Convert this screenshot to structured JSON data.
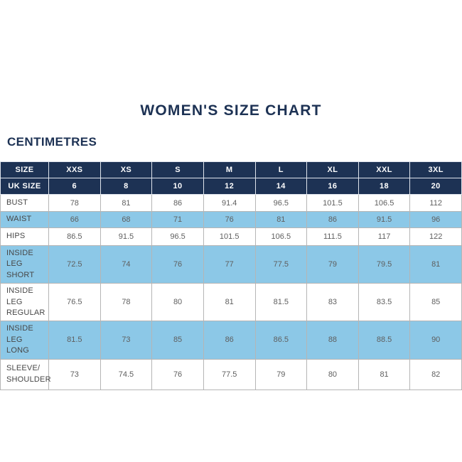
{
  "page": {
    "title": "WOMEN'S SIZE CHART",
    "subtitle": "CENTIMETRES"
  },
  "colors": {
    "navy": "#1d3254",
    "light_blue": "#8cc8e7",
    "border_gray": "#b5b5b5",
    "data_text": "#5f5f5f",
    "label_text": "#474747"
  },
  "table": {
    "header": [
      "SIZE",
      "XXS",
      "XS",
      "S",
      "M",
      "L",
      "XL",
      "XXL",
      "3XL"
    ],
    "uk_row": {
      "label": "UK SIZE",
      "values": [
        "6",
        "8",
        "10",
        "12",
        "14",
        "16",
        "18",
        "20"
      ]
    },
    "rows": [
      {
        "label": "BUST",
        "highlighted": false,
        "values": [
          "78",
          "81",
          "86",
          "91.4",
          "96.5",
          "101.5",
          "106.5",
          "112"
        ]
      },
      {
        "label": "WAIST",
        "highlighted": true,
        "values": [
          "66",
          "68",
          "71",
          "76",
          "81",
          "86",
          "91.5",
          "96"
        ]
      },
      {
        "label": "HIPS",
        "highlighted": false,
        "values": [
          "86.5",
          "91.5",
          "96.5",
          "101.5",
          "106.5",
          "111.5",
          "117",
          "122"
        ]
      },
      {
        "label": "INSIDE LEG\nSHORT",
        "highlighted": true,
        "values": [
          "72.5",
          "74",
          "76",
          "77",
          "77.5",
          "79",
          "79.5",
          "81"
        ]
      },
      {
        "label": "INSIDE LEG\nREGULAR",
        "highlighted": false,
        "values": [
          "76.5",
          "78",
          "80",
          "81",
          "81.5",
          "83",
          "83.5",
          "85"
        ]
      },
      {
        "label": "INSIDE LEG\nLONG",
        "highlighted": true,
        "values": [
          "81.5",
          "73",
          "85",
          "86",
          "86.5",
          "88",
          "88.5",
          "90"
        ]
      },
      {
        "label": "SLEEVE/\nSHOULDER",
        "highlighted": false,
        "values": [
          "73",
          "74.5",
          "76",
          "77.5",
          "79",
          "80",
          "81",
          "82"
        ]
      }
    ]
  }
}
